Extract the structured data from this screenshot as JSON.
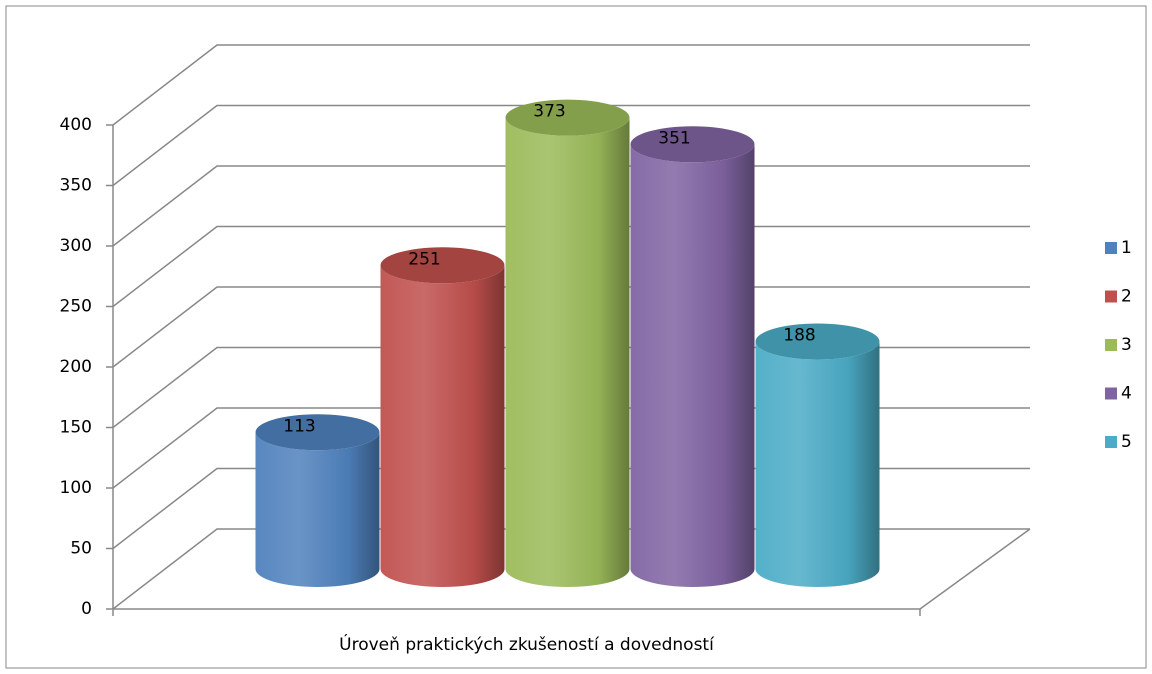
{
  "chart_data": {
    "type": "bar3d_cylinder",
    "categories": [
      "Úroveň praktických zkušeností a dovedností"
    ],
    "series": [
      {
        "name": "1",
        "color": "#4f81bd",
        "values": [
          113
        ]
      },
      {
        "name": "2",
        "color": "#c0504d",
        "values": [
          251
        ]
      },
      {
        "name": "3",
        "color": "#9bbb59",
        "values": [
          373
        ]
      },
      {
        "name": "4",
        "color": "#8064a2",
        "values": [
          351
        ]
      },
      {
        "name": "5",
        "color": "#4bacc6",
        "values": [
          188
        ]
      }
    ],
    "ylim": [
      0,
      400
    ],
    "yticks": [
      0,
      50,
      100,
      150,
      200,
      250,
      300,
      350,
      400
    ],
    "grid": true,
    "legend": "right"
  }
}
